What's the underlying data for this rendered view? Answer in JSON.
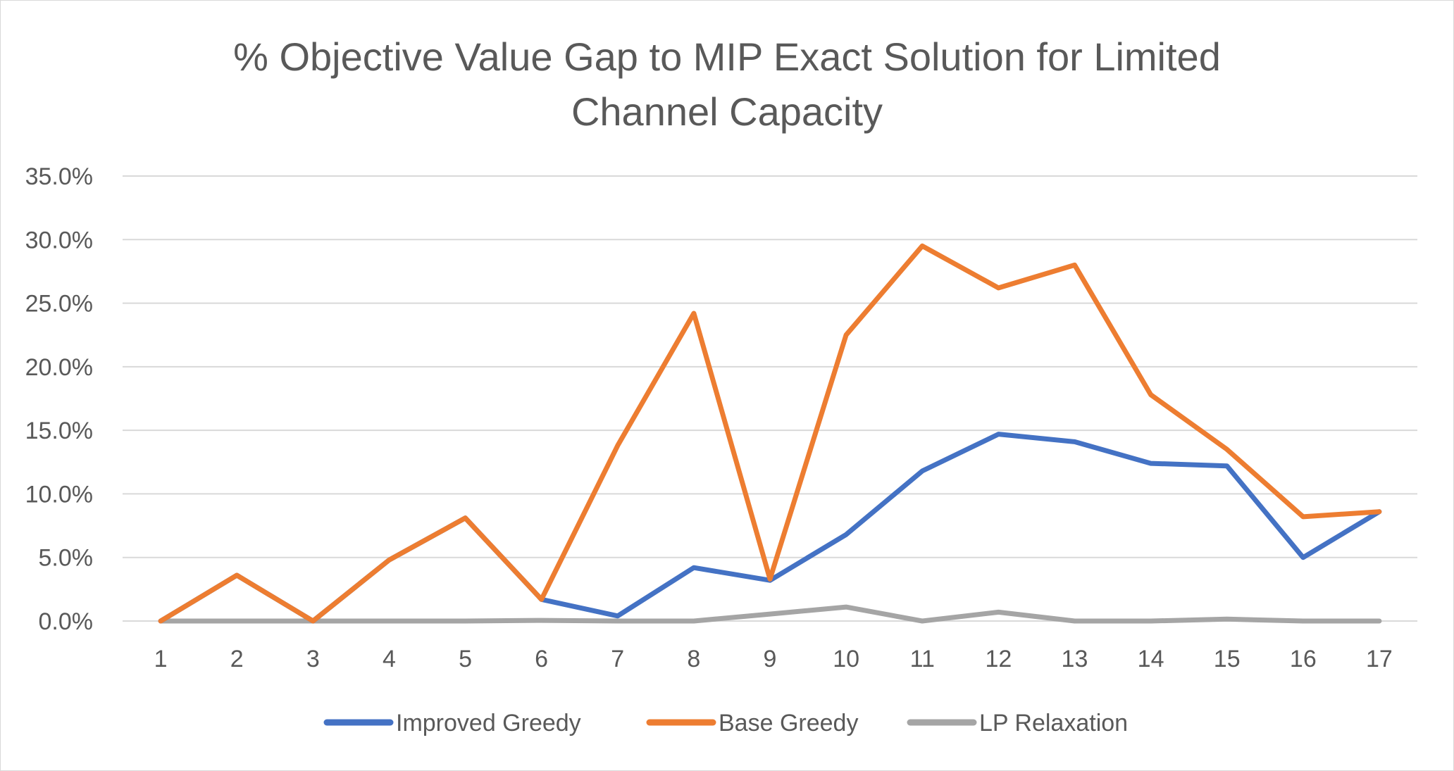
{
  "chart_data": {
    "type": "line",
    "title_lines": [
      "% Objective Value Gap to MIP Exact Solution for Limited",
      "Channel Capacity"
    ],
    "categories": [
      "1",
      "2",
      "3",
      "4",
      "5",
      "6",
      "7",
      "8",
      "9",
      "10",
      "11",
      "12",
      "13",
      "14",
      "15",
      "16",
      "17"
    ],
    "y_ticks": [
      "0.0%",
      "5.0%",
      "10.0%",
      "15.0%",
      "20.0%",
      "25.0%",
      "30.0%",
      "35.0%"
    ],
    "ylim": [
      0,
      35
    ],
    "grid": true,
    "legend_position": "bottom",
    "series": [
      {
        "name": "Improved Greedy",
        "color": "#4472C4",
        "values": [
          0.0,
          3.6,
          0.0,
          4.8,
          8.1,
          1.7,
          0.4,
          4.2,
          3.2,
          6.8,
          11.8,
          14.7,
          14.1,
          12.4,
          12.2,
          5.0,
          8.6
        ]
      },
      {
        "name": "Base Greedy",
        "color": "#ED7D31",
        "values": [
          0.0,
          3.6,
          0.0,
          4.8,
          8.1,
          1.7,
          13.8,
          24.2,
          3.3,
          22.5,
          29.5,
          26.2,
          28.0,
          17.8,
          13.5,
          8.2,
          8.6
        ]
      },
      {
        "name": "LP Relaxation",
        "color": "#A5A5A5",
        "values": [
          0.0,
          0.0,
          0.0,
          0.0,
          0.0,
          0.05,
          0.0,
          0.0,
          0.55,
          1.1,
          0.0,
          0.7,
          0.0,
          0.0,
          0.15,
          0.0,
          0.0
        ]
      }
    ]
  }
}
